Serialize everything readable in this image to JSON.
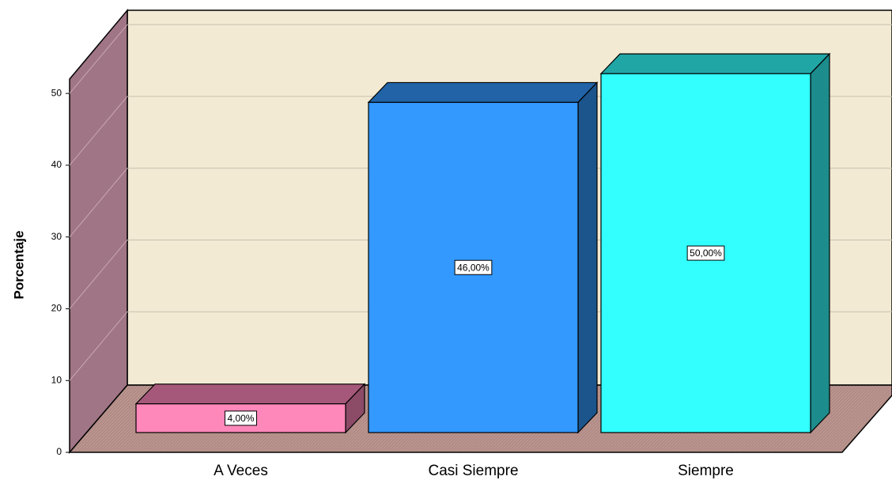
{
  "chart_data": {
    "type": "bar3d",
    "ylabel": "Porcentaje",
    "categories": [
      "A Veces",
      "Casi Siempre",
      "Siempre"
    ],
    "values": [
      4,
      46,
      50
    ],
    "value_labels": [
      "4,00%",
      "46,00%",
      "50,00%"
    ],
    "colors": [
      "#ff88bb",
      "#3399ff",
      "#33ffff"
    ],
    "ylim": [
      0,
      52
    ],
    "yticks": [
      0,
      10,
      20,
      30,
      40,
      50
    ],
    "grid": true
  }
}
